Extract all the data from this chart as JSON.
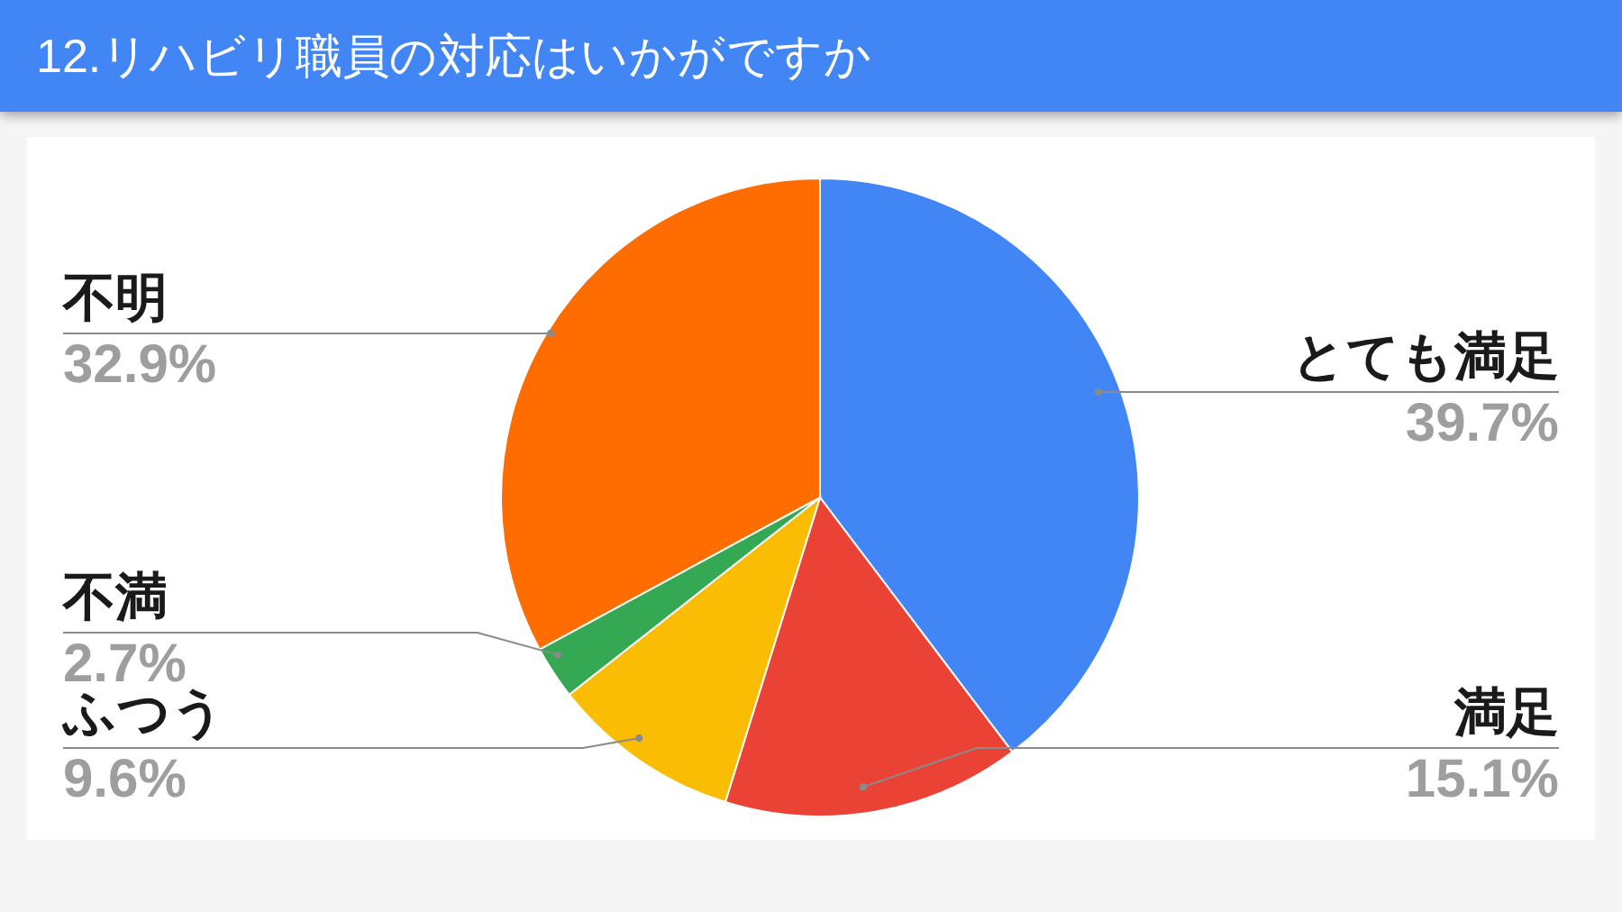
{
  "chart_data": {
    "type": "pie",
    "title": "12.リハビリ職員の対応はいかがですか",
    "categories": [
      "とても満足",
      "満足",
      "ふつう",
      "不満",
      "不明"
    ],
    "values": [
      39.7,
      15.1,
      9.6,
      2.7,
      32.9
    ],
    "value_labels": [
      "39.7%",
      "15.1%",
      "9.6%",
      "2.7%",
      "32.9%"
    ],
    "colors": [
      "#4285f4",
      "#ea4335",
      "#fbbc04",
      "#34a853",
      "#ff6d01"
    ]
  }
}
